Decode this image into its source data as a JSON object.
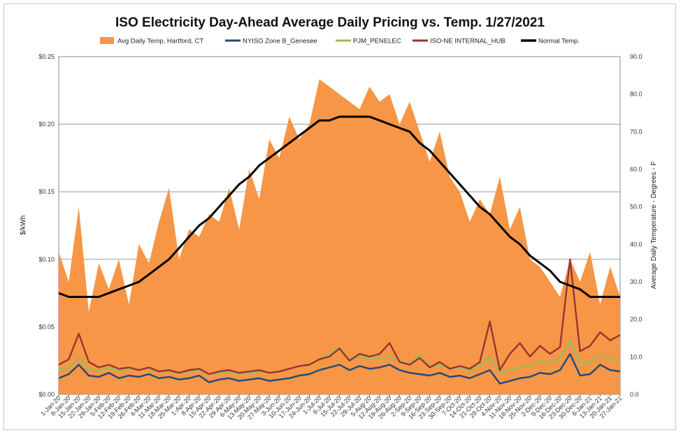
{
  "chart_data": {
    "type": "line",
    "title": "ISO Electricity Day-Ahead Average Daily Pricing vs. Temp. 1/27/2021",
    "ylabel": "$/kWh",
    "y2label": "Average Daily Temperature - Degrees - F",
    "ylim": [
      0,
      0.25
    ],
    "y2lim": [
      0,
      90
    ],
    "yticks": [
      "$0.00",
      "$0.05",
      "$0.10",
      "$0.15",
      "$0.20",
      "$0.25"
    ],
    "y2ticks": [
      "0.0",
      "10.0",
      "20.0",
      "30.0",
      "40.0",
      "50.0",
      "60.0",
      "70.0",
      "80.0",
      "90.0"
    ],
    "grid": true,
    "legend_position": "top",
    "x_start": "2020-01-01",
    "x_end": "2021-01-27",
    "xticks": [
      "1-Jan-20",
      "8-Jan-20",
      "15-Jan-20",
      "22-Jan-20",
      "29-Jan-20",
      "5-Feb-20",
      "12-Feb-20",
      "19-Feb-20",
      "26-Feb-20",
      "4-Mar-20",
      "11-Mar-20",
      "18-Mar-20",
      "25-Mar-20",
      "1-Apr-20",
      "8-Apr-20",
      "15-Apr-20",
      "22-Apr-20",
      "29-Apr-20",
      "6-May-20",
      "13-May-20",
      "20-May-20",
      "27-May-20",
      "3-Jun-20",
      "10-Jun-20",
      "17-Jun-20",
      "24-Jun-20",
      "1-Jul-20",
      "8-Jul-20",
      "15-Jul-20",
      "22-Jul-20",
      "29-Jul-20",
      "5-Aug-20",
      "12-Aug-20",
      "19-Aug-20",
      "26-Aug-20",
      "2-Sep-20",
      "9-Sep-20",
      "16-Sep-20",
      "23-Sep-20",
      "30-Sep-20",
      "7-Oct-20",
      "14-Oct-20",
      "21-Oct-20",
      "28-Oct-20",
      "4-Nov-20",
      "11-Nov-20",
      "18-Nov-20",
      "25-Nov-20",
      "2-Dec-20",
      "9-Dec-20",
      "16-Dec-20",
      "23-Dec-20",
      "30-Dec-20",
      "6-Jan-21",
      "13-Jan-21",
      "20-Jan-21",
      "27-Jan-21"
    ],
    "series": [
      {
        "name": "Avg Daily Temp, Hartford, CT",
        "kind": "area",
        "axis": "right",
        "color": "#f79646",
        "x": [
          "1-Jan-20",
          "8-Jan-20",
          "15-Jan-20",
          "22-Jan-20",
          "29-Jan-20",
          "5-Feb-20",
          "12-Feb-20",
          "19-Feb-20",
          "26-Feb-20",
          "4-Mar-20",
          "11-Mar-20",
          "18-Mar-20",
          "25-Mar-20",
          "1-Apr-20",
          "8-Apr-20",
          "15-Apr-20",
          "22-Apr-20",
          "29-Apr-20",
          "6-May-20",
          "13-May-20",
          "20-May-20",
          "27-May-20",
          "3-Jun-20",
          "10-Jun-20",
          "17-Jun-20",
          "24-Jun-20",
          "1-Jul-20",
          "8-Jul-20",
          "15-Jul-20",
          "22-Jul-20",
          "29-Jul-20",
          "5-Aug-20",
          "12-Aug-20",
          "19-Aug-20",
          "26-Aug-20",
          "2-Sep-20",
          "9-Sep-20",
          "16-Sep-20",
          "23-Sep-20",
          "30-Sep-20",
          "7-Oct-20",
          "14-Oct-20",
          "21-Oct-20",
          "28-Oct-20",
          "4-Nov-20",
          "11-Nov-20",
          "18-Nov-20",
          "25-Nov-20",
          "2-Dec-20",
          "9-Dec-20",
          "16-Dec-20",
          "23-Dec-20",
          "30-Dec-20",
          "6-Jan-21",
          "13-Jan-21",
          "20-Jan-21",
          "27-Jan-21"
        ],
        "values": [
          38,
          30,
          50,
          22,
          35,
          28,
          36,
          24,
          40,
          35,
          46,
          55,
          36,
          44,
          42,
          48,
          46,
          55,
          44,
          60,
          52,
          68,
          63,
          74,
          68,
          72,
          84,
          82,
          80,
          78,
          76,
          82,
          78,
          80,
          72,
          78,
          70,
          62,
          70,
          58,
          54,
          46,
          52,
          48,
          58,
          44,
          50,
          36,
          34,
          30,
          26,
          36,
          30,
          38,
          24,
          34,
          26
        ]
      },
      {
        "name": "NYISO Zone B_Genesee",
        "kind": "line",
        "axis": "left",
        "color": "#1f497d",
        "x": [
          "1-Jan-20",
          "8-Jan-20",
          "15-Jan-20",
          "22-Jan-20",
          "29-Jan-20",
          "5-Feb-20",
          "12-Feb-20",
          "19-Feb-20",
          "26-Feb-20",
          "4-Mar-20",
          "11-Mar-20",
          "18-Mar-20",
          "25-Mar-20",
          "1-Apr-20",
          "8-Apr-20",
          "15-Apr-20",
          "22-Apr-20",
          "29-Apr-20",
          "6-May-20",
          "13-May-20",
          "20-May-20",
          "27-May-20",
          "3-Jun-20",
          "10-Jun-20",
          "17-Jun-20",
          "24-Jun-20",
          "1-Jul-20",
          "8-Jul-20",
          "15-Jul-20",
          "22-Jul-20",
          "29-Jul-20",
          "5-Aug-20",
          "12-Aug-20",
          "19-Aug-20",
          "26-Aug-20",
          "2-Sep-20",
          "9-Sep-20",
          "16-Sep-20",
          "23-Sep-20",
          "30-Sep-20",
          "7-Oct-20",
          "14-Oct-20",
          "21-Oct-20",
          "28-Oct-20",
          "4-Nov-20",
          "11-Nov-20",
          "18-Nov-20",
          "25-Nov-20",
          "2-Dec-20",
          "9-Dec-20",
          "16-Dec-20",
          "23-Dec-20",
          "30-Dec-20",
          "6-Jan-21",
          "13-Jan-21",
          "20-Jan-21",
          "27-Jan-21"
        ],
        "values": [
          0.012,
          0.015,
          0.022,
          0.014,
          0.013,
          0.016,
          0.012,
          0.014,
          0.013,
          0.015,
          0.012,
          0.013,
          0.011,
          0.012,
          0.014,
          0.009,
          0.011,
          0.012,
          0.01,
          0.011,
          0.012,
          0.01,
          0.011,
          0.012,
          0.014,
          0.015,
          0.018,
          0.02,
          0.022,
          0.018,
          0.021,
          0.019,
          0.02,
          0.022,
          0.018,
          0.016,
          0.015,
          0.014,
          0.016,
          0.013,
          0.014,
          0.012,
          0.015,
          0.018,
          0.008,
          0.01,
          0.012,
          0.013,
          0.016,
          0.015,
          0.018,
          0.03,
          0.014,
          0.015,
          0.022,
          0.018,
          0.017
        ]
      },
      {
        "name": "PJM_PENELEC",
        "kind": "line",
        "axis": "left",
        "color": "#9bbb59",
        "x": [
          "1-Jan-20",
          "8-Jan-20",
          "15-Jan-20",
          "22-Jan-20",
          "29-Jan-20",
          "5-Feb-20",
          "12-Feb-20",
          "19-Feb-20",
          "26-Feb-20",
          "4-Mar-20",
          "11-Mar-20",
          "18-Mar-20",
          "25-Mar-20",
          "1-Apr-20",
          "8-Apr-20",
          "15-Apr-20",
          "22-Apr-20",
          "29-Apr-20",
          "6-May-20",
          "13-May-20",
          "20-May-20",
          "27-May-20",
          "3-Jun-20",
          "10-Jun-20",
          "17-Jun-20",
          "24-Jun-20",
          "1-Jul-20",
          "8-Jul-20",
          "15-Jul-20",
          "22-Jul-20",
          "29-Jul-20",
          "5-Aug-20",
          "12-Aug-20",
          "19-Aug-20",
          "26-Aug-20",
          "2-Sep-20",
          "9-Sep-20",
          "16-Sep-20",
          "23-Sep-20",
          "30-Sep-20",
          "7-Oct-20",
          "14-Oct-20",
          "21-Oct-20",
          "28-Oct-20",
          "4-Nov-20",
          "11-Nov-20",
          "18-Nov-20",
          "25-Nov-20",
          "2-Dec-20",
          "9-Dec-20",
          "16-Dec-20",
          "23-Dec-20",
          "30-Dec-20",
          "6-Jan-21",
          "13-Jan-21",
          "20-Jan-21",
          "27-Jan-21"
        ],
        "values": [
          0.019,
          0.02,
          0.027,
          0.019,
          0.018,
          0.02,
          0.018,
          0.019,
          0.018,
          0.019,
          0.017,
          0.017,
          0.016,
          0.017,
          0.018,
          0.015,
          0.016,
          0.017,
          0.015,
          0.016,
          0.017,
          0.016,
          0.017,
          0.019,
          0.021,
          0.022,
          0.026,
          0.03,
          0.035,
          0.025,
          0.028,
          0.026,
          0.027,
          0.028,
          0.025,
          0.022,
          0.03,
          0.02,
          0.022,
          0.019,
          0.02,
          0.018,
          0.021,
          0.028,
          0.016,
          0.018,
          0.02,
          0.021,
          0.024,
          0.023,
          0.027,
          0.04,
          0.023,
          0.024,
          0.029,
          0.027,
          0.026
        ]
      },
      {
        "name": "ISO-NE INTERNAL_HUB",
        "kind": "line",
        "axis": "left",
        "color": "#943634",
        "x": [
          "1-Jan-20",
          "8-Jan-20",
          "15-Jan-20",
          "22-Jan-20",
          "29-Jan-20",
          "5-Feb-20",
          "12-Feb-20",
          "19-Feb-20",
          "26-Feb-20",
          "4-Mar-20",
          "11-Mar-20",
          "18-Mar-20",
          "25-Mar-20",
          "1-Apr-20",
          "8-Apr-20",
          "15-Apr-20",
          "22-Apr-20",
          "29-Apr-20",
          "6-May-20",
          "13-May-20",
          "20-May-20",
          "27-May-20",
          "3-Jun-20",
          "10-Jun-20",
          "17-Jun-20",
          "24-Jun-20",
          "1-Jul-20",
          "8-Jul-20",
          "15-Jul-20",
          "22-Jul-20",
          "29-Jul-20",
          "5-Aug-20",
          "12-Aug-20",
          "19-Aug-20",
          "26-Aug-20",
          "2-Sep-20",
          "9-Sep-20",
          "16-Sep-20",
          "23-Sep-20",
          "30-Sep-20",
          "7-Oct-20",
          "14-Oct-20",
          "21-Oct-20",
          "28-Oct-20",
          "4-Nov-20",
          "11-Nov-20",
          "18-Nov-20",
          "25-Nov-20",
          "2-Dec-20",
          "9-Dec-20",
          "16-Dec-20",
          "23-Dec-20",
          "30-Dec-20",
          "6-Jan-21",
          "13-Jan-21",
          "20-Jan-21",
          "27-Jan-21"
        ],
        "values": [
          0.022,
          0.026,
          0.045,
          0.024,
          0.02,
          0.022,
          0.019,
          0.02,
          0.018,
          0.02,
          0.017,
          0.018,
          0.016,
          0.018,
          0.019,
          0.015,
          0.017,
          0.018,
          0.016,
          0.017,
          0.018,
          0.016,
          0.017,
          0.019,
          0.021,
          0.022,
          0.026,
          0.028,
          0.034,
          0.025,
          0.03,
          0.028,
          0.03,
          0.038,
          0.024,
          0.022,
          0.027,
          0.02,
          0.024,
          0.019,
          0.021,
          0.019,
          0.024,
          0.054,
          0.018,
          0.03,
          0.038,
          0.028,
          0.036,
          0.03,
          0.035,
          0.1,
          0.032,
          0.036,
          0.046,
          0.04,
          0.044
        ]
      },
      {
        "name": "Normal Temp.",
        "kind": "line",
        "axis": "right",
        "color": "#000000",
        "x": [
          "1-Jan-20",
          "8-Jan-20",
          "15-Jan-20",
          "22-Jan-20",
          "29-Jan-20",
          "5-Feb-20",
          "12-Feb-20",
          "19-Feb-20",
          "26-Feb-20",
          "4-Mar-20",
          "11-Mar-20",
          "18-Mar-20",
          "25-Mar-20",
          "1-Apr-20",
          "8-Apr-20",
          "15-Apr-20",
          "22-Apr-20",
          "29-Apr-20",
          "6-May-20",
          "13-May-20",
          "20-May-20",
          "27-May-20",
          "3-Jun-20",
          "10-Jun-20",
          "17-Jun-20",
          "24-Jun-20",
          "1-Jul-20",
          "8-Jul-20",
          "15-Jul-20",
          "22-Jul-20",
          "29-Jul-20",
          "5-Aug-20",
          "12-Aug-20",
          "19-Aug-20",
          "26-Aug-20",
          "2-Sep-20",
          "9-Sep-20",
          "16-Sep-20",
          "23-Sep-20",
          "30-Sep-20",
          "7-Oct-20",
          "14-Oct-20",
          "21-Oct-20",
          "28-Oct-20",
          "4-Nov-20",
          "11-Nov-20",
          "18-Nov-20",
          "25-Nov-20",
          "2-Dec-20",
          "9-Dec-20",
          "16-Dec-20",
          "23-Dec-20",
          "30-Dec-20",
          "6-Jan-21",
          "13-Jan-21",
          "20-Jan-21",
          "27-Jan-21"
        ],
        "values": [
          27,
          26,
          26,
          26,
          26,
          27,
          28,
          29,
          30,
          32,
          34,
          36,
          39,
          42,
          45,
          47,
          50,
          53,
          56,
          58,
          61,
          63,
          65,
          67,
          69,
          71,
          73,
          73,
          74,
          74,
          74,
          74,
          73,
          72,
          71,
          70,
          67,
          65,
          62,
          59,
          56,
          53,
          50,
          48,
          45,
          42,
          40,
          37,
          35,
          33,
          30,
          29,
          28,
          26,
          26,
          26,
          26
        ]
      }
    ]
  }
}
